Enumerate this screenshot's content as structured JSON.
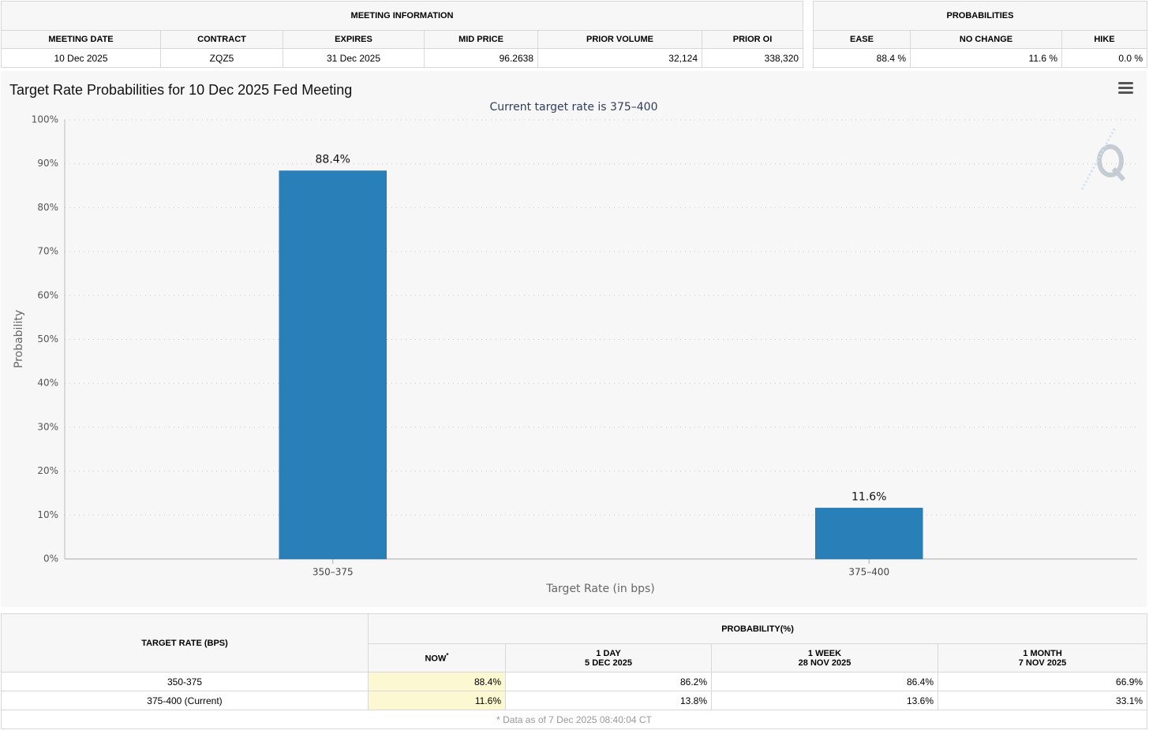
{
  "meeting_info": {
    "title": "MEETING INFORMATION",
    "headers": [
      "MEETING DATE",
      "CONTRACT",
      "EXPIRES",
      "MID PRICE",
      "PRIOR VOLUME",
      "PRIOR OI"
    ],
    "row": [
      "10 Dec 2025",
      "ZQZ5",
      "31 Dec 2025",
      "96.2638",
      "32,124",
      "338,320"
    ]
  },
  "probabilities": {
    "title": "PROBABILITIES",
    "headers": [
      "EASE",
      "NO CHANGE",
      "HIKE"
    ],
    "row": [
      "88.4 %",
      "11.6 %",
      "0.0 %"
    ]
  },
  "chart_data": {
    "type": "bar",
    "title": "Target Rate Probabilities for 10 Dec 2025 Fed Meeting",
    "subtitle": "Current target rate is 375–400",
    "categories": [
      "350–375",
      "375–400"
    ],
    "values": [
      88.4,
      11.6
    ],
    "value_labels": [
      "88.4%",
      "11.6%"
    ],
    "color": "#2980b9",
    "x_label": "Target Rate (in bps)",
    "y_label": "Probability",
    "ylim": [
      0,
      100
    ],
    "yticks": [
      {
        "value": 0,
        "label": "0%"
      },
      {
        "value": 10,
        "label": "10%"
      },
      {
        "value": 20,
        "label": "20%"
      },
      {
        "value": 30,
        "label": "30%"
      },
      {
        "value": 40,
        "label": "40%"
      },
      {
        "value": 50,
        "label": "50%"
      },
      {
        "value": 60,
        "label": "60%"
      },
      {
        "value": 70,
        "label": "70%"
      },
      {
        "value": 80,
        "label": "80%"
      },
      {
        "value": 90,
        "label": "90%"
      },
      {
        "value": 100,
        "label": "100%"
      }
    ],
    "grid": true
  },
  "history_table": {
    "row_header": "TARGET RATE (BPS)",
    "group_header": "PROBABILITY(%)",
    "columns": [
      {
        "label": "NOW",
        "note": "*"
      },
      {
        "label": "1 DAY",
        "date": "5 DEC 2025"
      },
      {
        "label": "1 WEEK",
        "date": "28 NOV 2025"
      },
      {
        "label": "1 MONTH",
        "date": "7 NOV 2025"
      }
    ],
    "rows": [
      [
        "350-375",
        "88.4%",
        "86.2%",
        "86.4%",
        "66.9%"
      ],
      [
        "375-400 (Current)",
        "11.6%",
        "13.8%",
        "13.6%",
        "33.1%"
      ]
    ],
    "footnote": "* Data as of 7 Dec 2025 08:40:04 CT"
  }
}
